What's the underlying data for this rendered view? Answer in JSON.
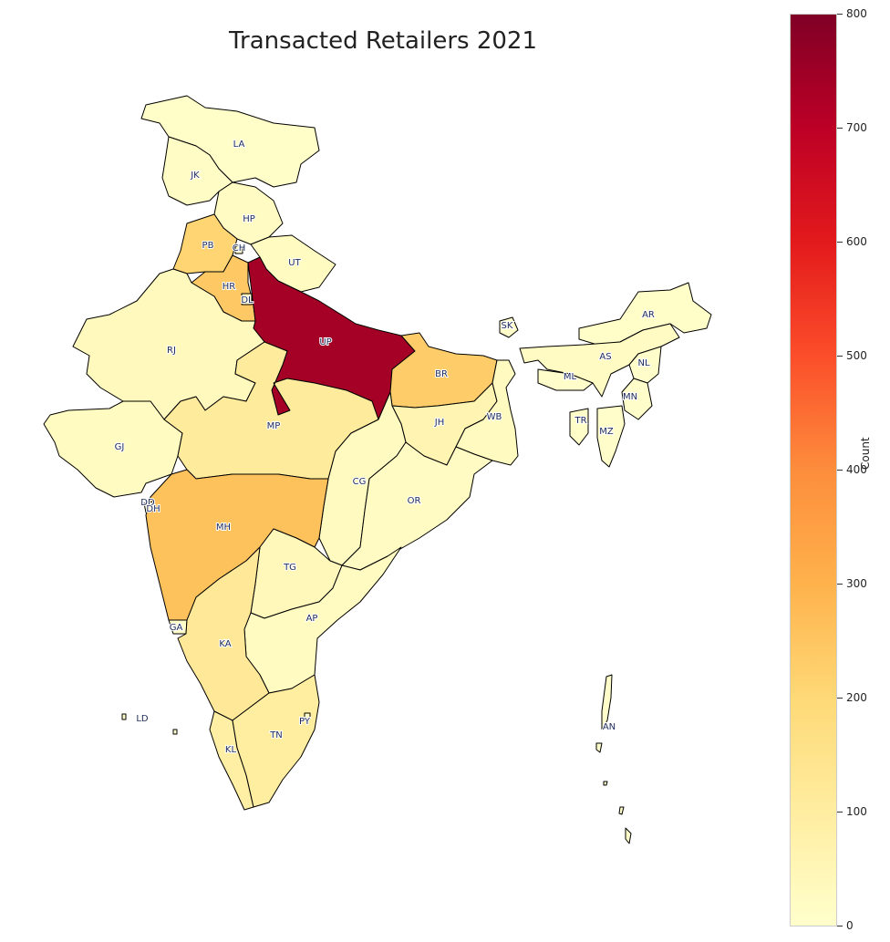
{
  "title": "Transacted Retailers 2021",
  "colorbar": {
    "label": "Count",
    "ticks": [
      "0",
      "100",
      "200",
      "300",
      "400",
      "500",
      "600",
      "700",
      "800"
    ],
    "range": [
      0,
      800
    ],
    "colormap": "YlOrRd"
  },
  "states": [
    {
      "code": "LA",
      "value": 10
    },
    {
      "code": "JK",
      "value": 15
    },
    {
      "code": "HP",
      "value": 20
    },
    {
      "code": "PB",
      "value": 210
    },
    {
      "code": "CH",
      "value": 5
    },
    {
      "code": "UT",
      "value": 25
    },
    {
      "code": "HR",
      "value": 240
    },
    {
      "code": "DL",
      "value": 60
    },
    {
      "code": "UP",
      "value": 740
    },
    {
      "code": "RJ",
      "value": 35
    },
    {
      "code": "GJ",
      "value": 25
    },
    {
      "code": "MP",
      "value": 110
    },
    {
      "code": "BR",
      "value": 230
    },
    {
      "code": "JH",
      "value": 60
    },
    {
      "code": "WB",
      "value": 30
    },
    {
      "code": "SK",
      "value": 5
    },
    {
      "code": "AR",
      "value": 10
    },
    {
      "code": "AS",
      "value": 20
    },
    {
      "code": "NL",
      "value": 5
    },
    {
      "code": "ML",
      "value": 5
    },
    {
      "code": "MN",
      "value": 5
    },
    {
      "code": "TR",
      "value": 10
    },
    {
      "code": "MZ",
      "value": 5
    },
    {
      "code": "CG",
      "value": 30
    },
    {
      "code": "OR",
      "value": 20
    },
    {
      "code": "MH",
      "value": 260
    },
    {
      "code": "DD",
      "value": 5
    },
    {
      "code": "DH",
      "value": 5
    },
    {
      "code": "TG",
      "value": 40
    },
    {
      "code": "AP",
      "value": 25
    },
    {
      "code": "GA",
      "value": 10
    },
    {
      "code": "KA",
      "value": 120
    },
    {
      "code": "KL",
      "value": 90
    },
    {
      "code": "TN",
      "value": 100
    },
    {
      "code": "PY",
      "value": 10
    },
    {
      "code": "LD",
      "value": 0
    },
    {
      "code": "AN",
      "value": 5
    }
  ]
}
